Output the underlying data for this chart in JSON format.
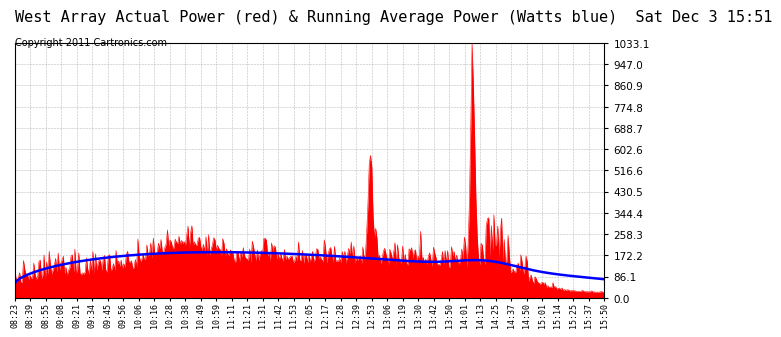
{
  "title": "West Array Actual Power (red) & Running Average Power (Watts blue)  Sat Dec 3 15:51",
  "copyright": "Copyright 2011 Cartronics.com",
  "ymin": 0.0,
  "ymax": 1033.1,
  "yticks": [
    0.0,
    86.1,
    172.2,
    258.3,
    344.4,
    430.5,
    516.6,
    602.6,
    688.7,
    774.8,
    860.9,
    947.0,
    1033.1
  ],
  "bg_color": "#ffffff",
  "plot_bg_color": "#ffffff",
  "grid_color": "#bbbbbb",
  "bar_color": "#ff0000",
  "avg_color": "#0000ff",
  "title_fontsize": 11,
  "copyright_fontsize": 7,
  "xtick_labels": [
    "08:23",
    "08:39",
    "08:55",
    "09:08",
    "09:21",
    "09:34",
    "09:45",
    "09:56",
    "10:06",
    "10:16",
    "10:28",
    "10:38",
    "10:49",
    "10:59",
    "11:11",
    "11:21",
    "11:31",
    "11:42",
    "11:53",
    "12:05",
    "12:17",
    "12:28",
    "12:39",
    "12:53",
    "13:06",
    "13:19",
    "13:30",
    "13:42",
    "13:50",
    "14:01",
    "14:13",
    "14:25",
    "14:37",
    "14:50",
    "15:01",
    "15:14",
    "15:25",
    "15:37",
    "15:50"
  ]
}
